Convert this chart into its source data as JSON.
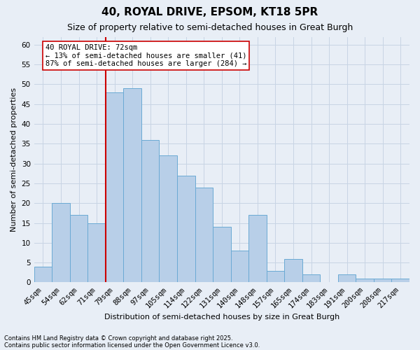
{
  "title1": "40, ROYAL DRIVE, EPSOM, KT18 5PR",
  "title2": "Size of property relative to semi-detached houses in Great Burgh",
  "xlabel": "Distribution of semi-detached houses by size in Great Burgh",
  "ylabel": "Number of semi-detached properties",
  "categories": [
    "45sqm",
    "54sqm",
    "62sqm",
    "71sqm",
    "79sqm",
    "88sqm",
    "97sqm",
    "105sqm",
    "114sqm",
    "122sqm",
    "131sqm",
    "140sqm",
    "148sqm",
    "157sqm",
    "165sqm",
    "174sqm",
    "183sqm",
    "191sqm",
    "200sqm",
    "208sqm",
    "217sqm"
  ],
  "values": [
    4,
    20,
    17,
    15,
    48,
    49,
    36,
    32,
    27,
    24,
    14,
    8,
    17,
    3,
    6,
    2,
    0,
    2,
    1,
    1,
    1
  ],
  "bar_color": "#b8cfe8",
  "bar_edge_color": "#6aaad4",
  "grid_color": "#c8d4e4",
  "background_color": "#e8eef6",
  "vline_x_index": 3,
  "vline_color": "#cc0000",
  "annotation_title": "40 ROYAL DRIVE: 72sqm",
  "annotation_line1": "← 13% of semi-detached houses are smaller (41)",
  "annotation_line2": "87% of semi-detached houses are larger (284) →",
  "annotation_box_facecolor": "#ffffff",
  "annotation_box_edgecolor": "#cc0000",
  "ylim": [
    0,
    62
  ],
  "yticks": [
    0,
    5,
    10,
    15,
    20,
    25,
    30,
    35,
    40,
    45,
    50,
    55,
    60
  ],
  "footnote1": "Contains HM Land Registry data © Crown copyright and database right 2025.",
  "footnote2": "Contains public sector information licensed under the Open Government Licence v3.0.",
  "title1_fontsize": 11,
  "title2_fontsize": 9,
  "xlabel_fontsize": 8,
  "ylabel_fontsize": 8,
  "tick_fontsize": 7.5,
  "annot_fontsize": 7.5,
  "footnote_fontsize": 6
}
